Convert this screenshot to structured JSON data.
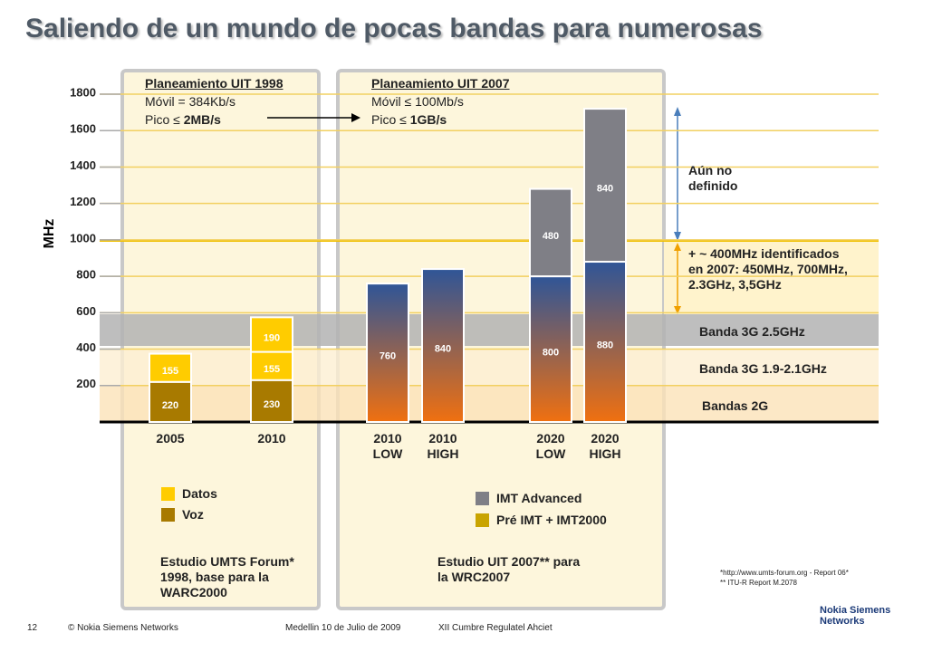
{
  "title": "Saliendo de un mundo de pocas bandas para numerosas",
  "chart_data": {
    "type": "bar",
    "stacked": true,
    "y_label": "MHz",
    "categories": [
      "2005",
      "2010",
      "2010 LOW",
      "2010 HIGH",
      "2020 LOW",
      "2020 HIGH"
    ],
    "series": [
      {
        "name": "Voz",
        "color": "#a87a00",
        "values": [
          220,
          230,
          null,
          null,
          null,
          null
        ]
      },
      {
        "name": "Datos",
        "color": "#ffcc00",
        "values": [
          155,
          155,
          null,
          null,
          null,
          null
        ]
      },
      {
        "color": "#ffcc00",
        "values": [
          null,
          190,
          null,
          null,
          null,
          null
        ]
      },
      {
        "name": "Pré IMT + IMT2000",
        "color": "#c9a400",
        "gradient": [
          "#2f5597",
          "#f07010"
        ],
        "values": [
          null,
          null,
          760,
          840,
          800,
          880
        ]
      },
      {
        "name": "IMT Advanced",
        "color": "#7f7f86",
        "values": [
          null,
          null,
          null,
          null,
          480,
          840
        ]
      }
    ],
    "ylim": [
      0,
      1800
    ],
    "yticks": [
      200,
      400,
      600,
      800,
      1000,
      1200,
      1400,
      1600,
      1800
    ],
    "grid": true
  },
  "panels": [
    {
      "heading": "Planeamiento UIT 1998",
      "line1": "Móvil = 384Kb/s",
      "line2": [
        "Pico ≤",
        "2MB/s"
      ],
      "study": "Estudio UMTS Forum* 1998, base para la WARC2000"
    },
    {
      "heading": "Planeamiento UIT 2007",
      "line1": "Móvil ≤ 100Mb/s",
      "line2": [
        "Pico ≤",
        "1GB/s"
      ],
      "study": "Estudio UIT 2007** para la WRC2007"
    }
  ],
  "annotations": {
    "undefined": "Aún no definido",
    "identified": "+ ~ 400MHz identificados en 2007: 450MHz, 700MHz, 2.3GHz, 3,5GHz",
    "band_25": "Banda 3G 2.5GHz",
    "band_19": "Banda 3G 1.9-2.1GHz",
    "band_2g": "Bandas 2G"
  },
  "footnotes": [
    "*http://www.umts-forum.org - Report 06*",
    "** ITU-R Report M.2078"
  ],
  "footer": {
    "page": "12",
    "copyright": "© Nokia Siemens Networks",
    "place": "Medellin 10 de Julio de 2009",
    "event": "XII Cumbre Regulatel Ahciet"
  },
  "logo": "Nokia Siemens Networks"
}
